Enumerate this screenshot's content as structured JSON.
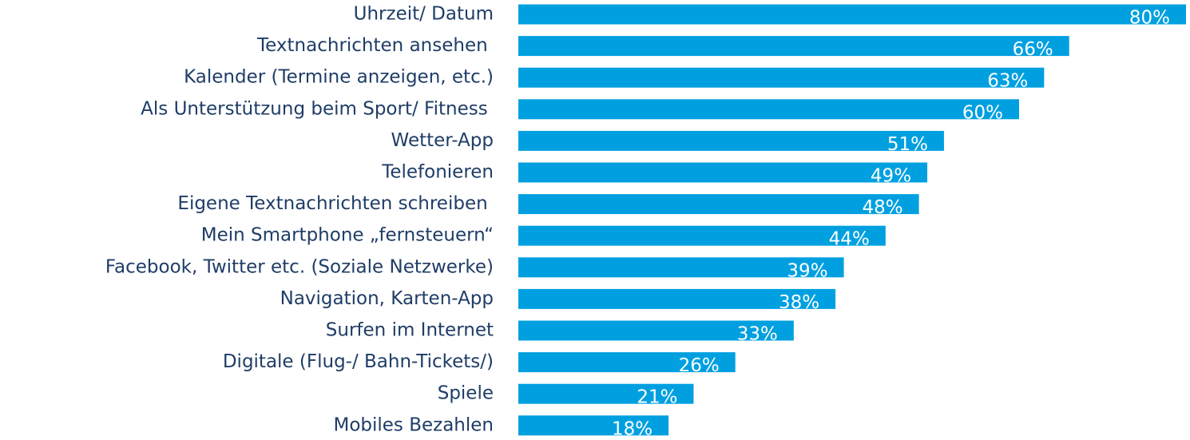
{
  "chart_data": {
    "type": "bar",
    "orientation": "horizontal",
    "color": "#00a0e0",
    "categories": [
      "Uhrzeit/ Datum",
      "Textnachrichten ansehen ",
      "Kalender (Termine anzeigen, etc.)",
      "Als Unterstützung beim Sport/ Fitness ",
      "Wetter-App",
      "Telefonieren",
      "Eigene Textnachrichten schreiben ",
      "Mein Smartphone „fernsteuern“",
      "Facebook, Twitter etc. (Soziale Netzwerke)",
      "Navigation, Karten-App",
      "Surfen im Internet",
      "Digitale (Flug-/ Bahn-Tickets/)",
      "Spiele",
      "Mobiles Bezahlen"
    ],
    "values": [
      80,
      66,
      63,
      60,
      51,
      49,
      48,
      44,
      39,
      38,
      33,
      26,
      21,
      18
    ],
    "value_labels": [
      "80%",
      "66%",
      "63%",
      "60%",
      "51%",
      "49%",
      "48%",
      "44%",
      "39%",
      "38%",
      "33%",
      "26%",
      "21%",
      "18%"
    ]
  }
}
